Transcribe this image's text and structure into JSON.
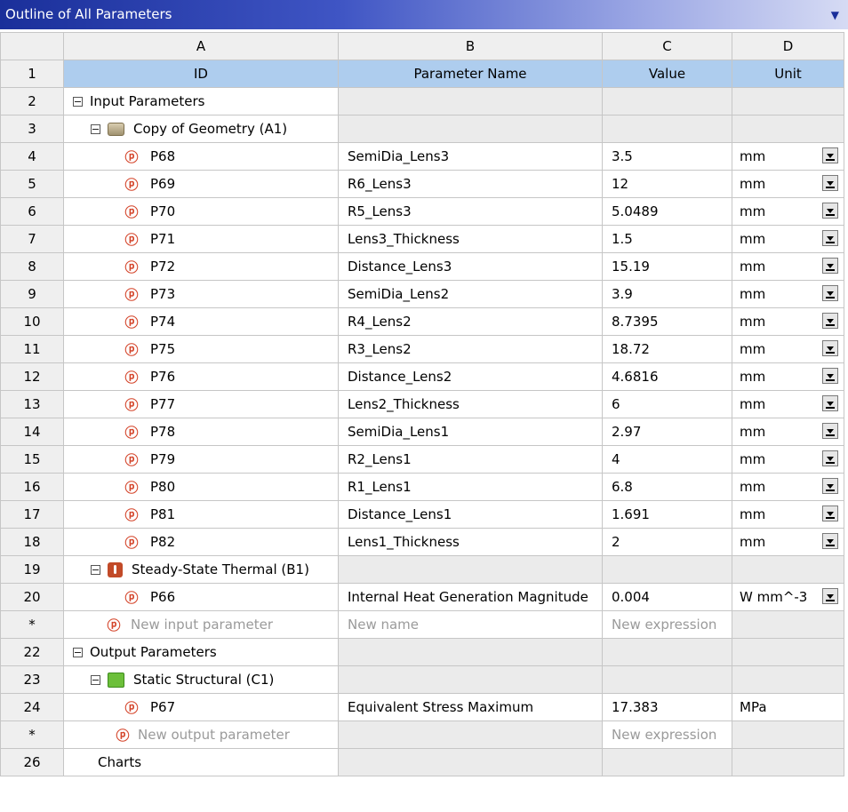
{
  "window": {
    "title": "Outline of All Parameters"
  },
  "columns": {
    "A": "A",
    "B": "B",
    "C": "C",
    "D": "D"
  },
  "header_row": {
    "num": "1",
    "id": "ID",
    "name": "Parameter Name",
    "value": "Value",
    "unit": "Unit"
  },
  "groups": {
    "input": {
      "num": "2",
      "label": "Input Parameters"
    },
    "geometry": {
      "num": "3",
      "label": "Copy of Geometry (A1)"
    },
    "thermal": {
      "num": "19",
      "label": "Steady-State Thermal (B1)"
    },
    "output": {
      "num": "22",
      "label": "Output Parameters"
    },
    "structural": {
      "num": "23",
      "label": "Static Structural (C1)"
    },
    "charts": {
      "num": "26",
      "label": "Charts"
    }
  },
  "geometry_params": [
    {
      "num": "4",
      "id": "P68",
      "name": "SemiDia_Lens3",
      "value": "3.5",
      "unit": "mm"
    },
    {
      "num": "5",
      "id": "P69",
      "name": "R6_Lens3",
      "value": "12",
      "unit": "mm"
    },
    {
      "num": "6",
      "id": "P70",
      "name": "R5_Lens3",
      "value": "5.0489",
      "unit": "mm"
    },
    {
      "num": "7",
      "id": "P71",
      "name": "Lens3_Thickness",
      "value": "1.5",
      "unit": "mm"
    },
    {
      "num": "8",
      "id": "P72",
      "name": "Distance_Lens3",
      "value": "15.19",
      "unit": "mm"
    },
    {
      "num": "9",
      "id": "P73",
      "name": "SemiDia_Lens2",
      "value": "3.9",
      "unit": "mm"
    },
    {
      "num": "10",
      "id": "P74",
      "name": "R4_Lens2",
      "value": "8.7395",
      "unit": "mm"
    },
    {
      "num": "11",
      "id": "P75",
      "name": "R3_Lens2",
      "value": "18.72",
      "unit": "mm"
    },
    {
      "num": "12",
      "id": "P76",
      "name": "Distance_Lens2",
      "value": "4.6816",
      "unit": "mm"
    },
    {
      "num": "13",
      "id": "P77",
      "name": "Lens2_Thickness",
      "value": "6",
      "unit": "mm"
    },
    {
      "num": "14",
      "id": "P78",
      "name": "SemiDia_Lens1",
      "value": "2.97",
      "unit": "mm"
    },
    {
      "num": "15",
      "id": "P79",
      "name": "R2_Lens1",
      "value": "4",
      "unit": "mm"
    },
    {
      "num": "16",
      "id": "P80",
      "name": "R1_Lens1",
      "value": "6.8",
      "unit": "mm"
    },
    {
      "num": "17",
      "id": "P81",
      "name": "Distance_Lens1",
      "value": "1.691",
      "unit": "mm"
    },
    {
      "num": "18",
      "id": "P82",
      "name": "Lens1_Thickness",
      "value": "2",
      "unit": "mm"
    }
  ],
  "thermal_param": {
    "num": "20",
    "id": "P66",
    "name": "Internal Heat Generation Magnitude",
    "value": "0.004",
    "unit": "W mm^-3"
  },
  "new_input": {
    "num": "*",
    "id": "New input parameter",
    "name": "New name",
    "value": "New expression"
  },
  "output_param": {
    "num": "24",
    "id": "P67",
    "name": "Equivalent Stress Maximum",
    "value": "17.383",
    "unit": "MPa"
  },
  "new_output": {
    "num": "*",
    "id": "New output parameter",
    "value": "New expression"
  },
  "icons": {
    "input_param": "input-parameter-icon",
    "output_param": "output-parameter-icon",
    "geometry": "geometry-cube-icon",
    "thermal": "thermal-icon",
    "structural": "structural-icon"
  },
  "colors": {
    "title_bar": "#1a2f9a",
    "header_row": "#aecdee",
    "param_icon": "#d4452b"
  }
}
